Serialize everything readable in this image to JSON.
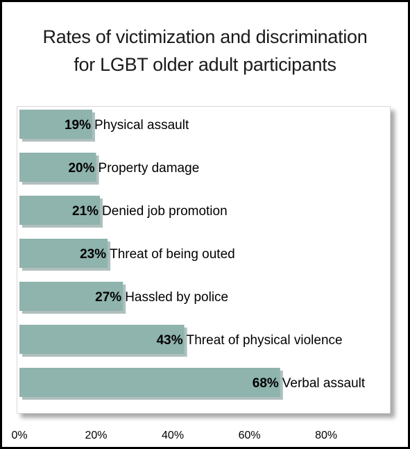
{
  "chart_data": {
    "type": "bar",
    "orientation": "horizontal",
    "title": "Rates of victimization and discrimination for LGBT older adult participants",
    "title_lines": [
      "Rates of victimization and discrimination",
      "for LGBT older adult participants"
    ],
    "categories": [
      "Physical assault",
      "Property damage",
      "Denied job promotion",
      "Threat of being outed",
      "Hassled by police",
      "Threat of physical violence",
      "Verbal assault"
    ],
    "values": [
      19,
      20,
      21,
      23,
      27,
      43,
      68
    ],
    "value_labels": [
      "19%",
      "20%",
      "21%",
      "23%",
      "27%",
      "43%",
      "68%"
    ],
    "xlim": [
      0,
      95
    ],
    "x_ticks": [
      0,
      20,
      40,
      60,
      80
    ],
    "x_tick_labels": [
      "0%",
      "20%",
      "40%",
      "60%",
      "80%"
    ],
    "grid": false,
    "legend": "none",
    "colors": {
      "bar": "#8fb3ad",
      "bar_shadow": "#6f8a86",
      "text": "#000000"
    }
  }
}
